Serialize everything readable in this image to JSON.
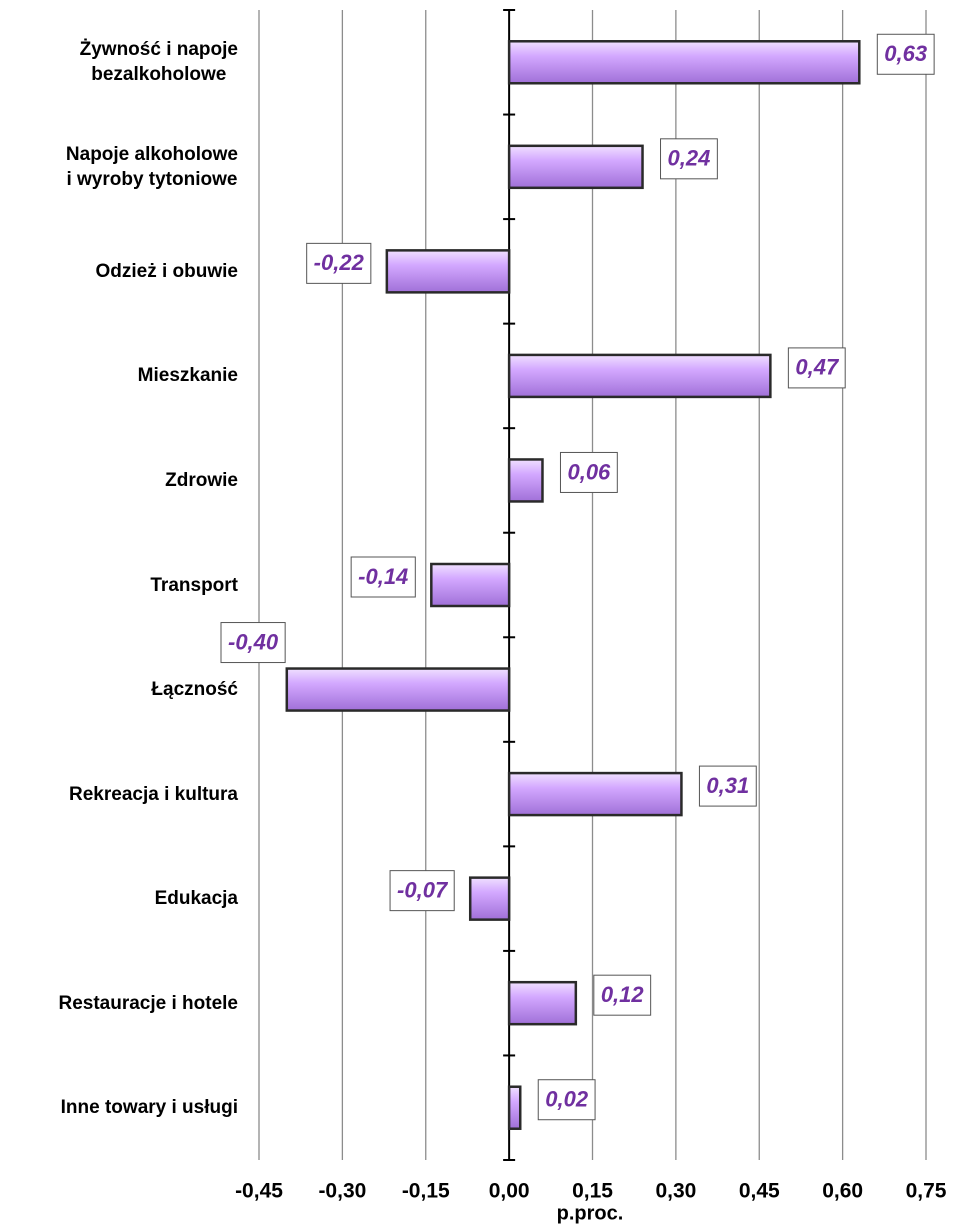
{
  "chart_data": {
    "type": "barh",
    "categories": [
      "Żywność i napoje\nbezalkoholowe",
      "Napoje alkoholowe\ni wyroby tytoniowe",
      "Odzież i obuwie",
      "Mieszkanie",
      "Zdrowie",
      "Transport",
      "Łączność",
      "Rekreacja i kultura",
      "Edukacja",
      "Restauracje i hotele",
      "Inne towary i usługi"
    ],
    "values": [
      0.63,
      0.24,
      -0.22,
      0.47,
      0.06,
      -0.14,
      -0.4,
      0.31,
      -0.07,
      0.12,
      0.02
    ],
    "value_labels": [
      "0,63",
      "0,24",
      "-0,22",
      "0,47",
      "0,06",
      "-0,14",
      "-0,40",
      "0,31",
      "-0,07",
      "0,12",
      "0,02"
    ],
    "color": "#cc99ff",
    "xlim": [
      -0.45,
      0.75
    ],
    "xticks": [
      {
        "value": -0.45,
        "label": "-0,45"
      },
      {
        "value": -0.3,
        "label": "-0,30"
      },
      {
        "value": -0.15,
        "label": "-0,15"
      },
      {
        "value": 0,
        "label": "0,00"
      },
      {
        "value": 0.15,
        "label": "0,15"
      },
      {
        "value": 0.3,
        "label": "0,30"
      },
      {
        "value": 0.45,
        "label": "0,45"
      },
      {
        "value": 0.6,
        "label": "0,60"
      },
      {
        "value": 0.75,
        "label": "0,75"
      }
    ],
    "xlabel": "p.proc.",
    "grid": true
  }
}
